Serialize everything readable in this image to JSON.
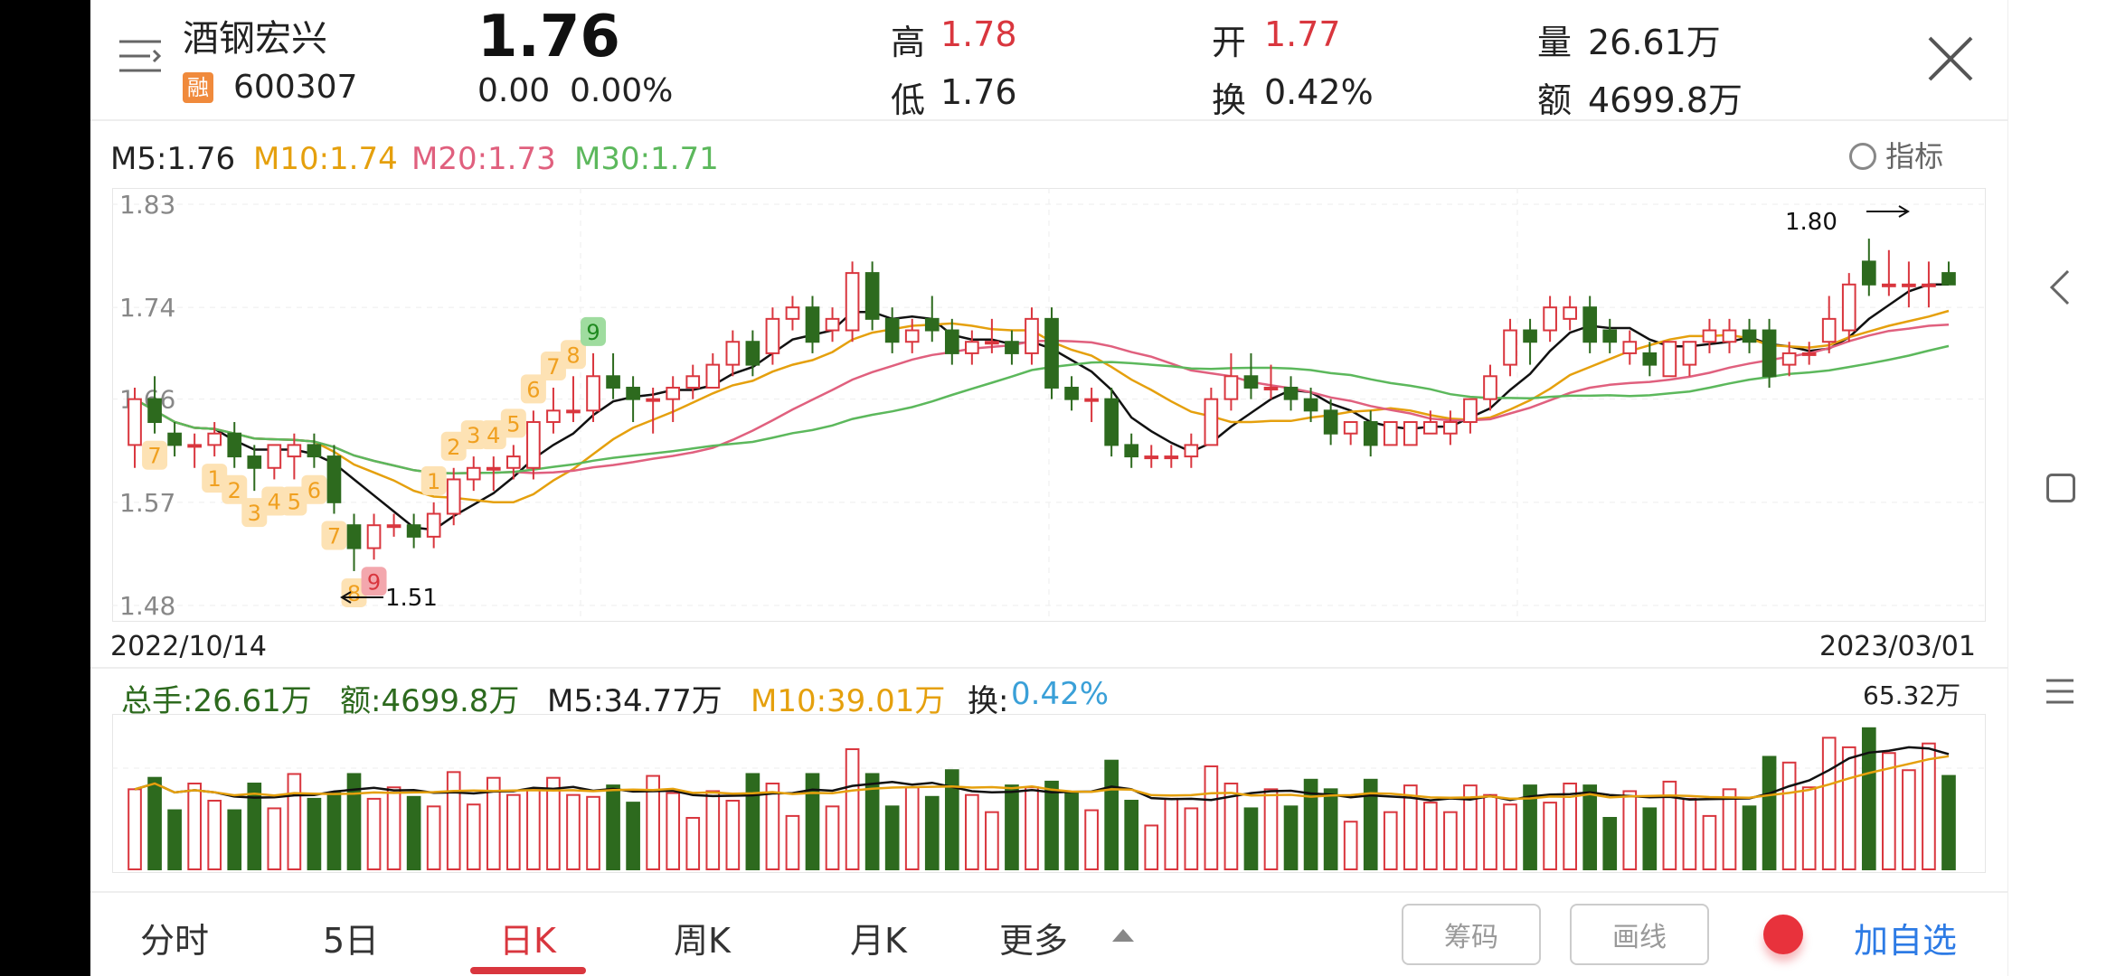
{
  "header": {
    "stock_name": "酒钢宏兴",
    "badge": "融",
    "code": "600307",
    "price": "1.76",
    "change": "0.00",
    "change_pct": "0.00%",
    "high_label": "高",
    "high": "1.78",
    "low_label": "低",
    "low": "1.76",
    "open_label": "开",
    "open": "1.77",
    "turnover_label": "换",
    "turnover": "0.42%",
    "volume_label": "量",
    "volume": "26.61万",
    "amount_label": "额",
    "amount": "4699.8万"
  },
  "ma_legend": {
    "m5": "M5:1.76",
    "m10": "M10:1.74",
    "m20": "M20:1.73",
    "m30": "M30:1.71",
    "indicator_label": "指标"
  },
  "kline": {
    "y_ticks": [
      "1.83",
      "1.74",
      "1.66",
      "1.57",
      "1.48"
    ],
    "start_date": "2022/10/14",
    "end_date": "2023/03/01",
    "high_mark": "1.80",
    "low_mark": "1.51",
    "td_sequence": [
      "1",
      "2",
      "3",
      "4",
      "5",
      "6",
      "7",
      "8",
      "9",
      "7",
      "1",
      "2",
      "3",
      "4",
      "5",
      "6",
      "7",
      "8",
      "9"
    ]
  },
  "volume_legend": {
    "total": "总手:26.61万",
    "amount": "额:4699.8万",
    "m5": "M5:34.77万",
    "m10": "M10:39.01万",
    "turnover_label": "换:",
    "turnover": "0.42%",
    "max": "65.32万"
  },
  "tabs": [
    "分时",
    "5日",
    "日K",
    "周K",
    "月K",
    "更多"
  ],
  "buttons": {
    "chips": "筹码",
    "draw": "画线",
    "add_watch": "加自选"
  },
  "colors": {
    "up": "#d9363e",
    "down": "#2d6a1e",
    "m10": "#e5a00d",
    "m20": "#e0607e",
    "m30": "#5cb85c"
  },
  "chart_data": {
    "type": "candlestick",
    "x_range": [
      "2022/10/14",
      "2023/03/01"
    ],
    "y_range": [
      1.48,
      1.83
    ],
    "ohlc": [
      [
        1.62,
        1.67,
        1.6,
        1.66
      ],
      [
        1.66,
        1.68,
        1.63,
        1.64
      ],
      [
        1.63,
        1.64,
        1.61,
        1.62
      ],
      [
        1.62,
        1.63,
        1.6,
        1.62
      ],
      [
        1.62,
        1.64,
        1.61,
        1.63
      ],
      [
        1.63,
        1.64,
        1.6,
        1.61
      ],
      [
        1.61,
        1.62,
        1.58,
        1.6
      ],
      [
        1.6,
        1.62,
        1.59,
        1.62
      ],
      [
        1.61,
        1.63,
        1.59,
        1.62
      ],
      [
        1.62,
        1.63,
        1.6,
        1.61
      ],
      [
        1.61,
        1.62,
        1.56,
        1.57
      ],
      [
        1.55,
        1.56,
        1.51,
        1.53
      ],
      [
        1.53,
        1.56,
        1.52,
        1.55
      ],
      [
        1.55,
        1.56,
        1.54,
        1.55
      ],
      [
        1.55,
        1.56,
        1.53,
        1.54
      ],
      [
        1.54,
        1.57,
        1.53,
        1.56
      ],
      [
        1.56,
        1.6,
        1.55,
        1.59
      ],
      [
        1.59,
        1.61,
        1.58,
        1.6
      ],
      [
        1.6,
        1.61,
        1.58,
        1.6
      ],
      [
        1.6,
        1.62,
        1.59,
        1.61
      ],
      [
        1.6,
        1.65,
        1.59,
        1.64
      ],
      [
        1.64,
        1.67,
        1.63,
        1.65
      ],
      [
        1.65,
        1.68,
        1.64,
        1.65
      ],
      [
        1.65,
        1.7,
        1.64,
        1.68
      ],
      [
        1.68,
        1.7,
        1.66,
        1.67
      ],
      [
        1.67,
        1.68,
        1.64,
        1.66
      ],
      [
        1.66,
        1.67,
        1.63,
        1.66
      ],
      [
        1.66,
        1.68,
        1.64,
        1.67
      ],
      [
        1.67,
        1.69,
        1.66,
        1.68
      ],
      [
        1.67,
        1.7,
        1.67,
        1.69
      ],
      [
        1.69,
        1.72,
        1.68,
        1.71
      ],
      [
        1.71,
        1.72,
        1.68,
        1.69
      ],
      [
        1.7,
        1.74,
        1.69,
        1.73
      ],
      [
        1.73,
        1.75,
        1.72,
        1.74
      ],
      [
        1.74,
        1.75,
        1.7,
        1.71
      ],
      [
        1.72,
        1.74,
        1.71,
        1.73
      ],
      [
        1.72,
        1.78,
        1.71,
        1.77
      ],
      [
        1.77,
        1.78,
        1.72,
        1.73
      ],
      [
        1.73,
        1.74,
        1.7,
        1.71
      ],
      [
        1.71,
        1.73,
        1.7,
        1.72
      ],
      [
        1.73,
        1.75,
        1.71,
        1.72
      ],
      [
        1.72,
        1.73,
        1.69,
        1.7
      ],
      [
        1.7,
        1.72,
        1.69,
        1.71
      ],
      [
        1.71,
        1.73,
        1.7,
        1.71
      ],
      [
        1.71,
        1.72,
        1.69,
        1.7
      ],
      [
        1.7,
        1.74,
        1.69,
        1.73
      ],
      [
        1.73,
        1.74,
        1.66,
        1.67
      ],
      [
        1.67,
        1.68,
        1.65,
        1.66
      ],
      [
        1.66,
        1.67,
        1.64,
        1.66
      ],
      [
        1.66,
        1.67,
        1.61,
        1.62
      ],
      [
        1.62,
        1.63,
        1.6,
        1.61
      ],
      [
        1.61,
        1.62,
        1.6,
        1.61
      ],
      [
        1.61,
        1.62,
        1.6,
        1.61
      ],
      [
        1.61,
        1.63,
        1.6,
        1.62
      ],
      [
        1.62,
        1.67,
        1.62,
        1.66
      ],
      [
        1.66,
        1.7,
        1.65,
        1.68
      ],
      [
        1.68,
        1.7,
        1.66,
        1.67
      ],
      [
        1.67,
        1.69,
        1.66,
        1.67
      ],
      [
        1.67,
        1.68,
        1.65,
        1.66
      ],
      [
        1.66,
        1.67,
        1.64,
        1.65
      ],
      [
        1.65,
        1.66,
        1.62,
        1.63
      ],
      [
        1.63,
        1.64,
        1.62,
        1.64
      ],
      [
        1.64,
        1.65,
        1.61,
        1.62
      ],
      [
        1.62,
        1.64,
        1.62,
        1.64
      ],
      [
        1.62,
        1.64,
        1.62,
        1.64
      ],
      [
        1.63,
        1.65,
        1.63,
        1.64
      ],
      [
        1.63,
        1.65,
        1.62,
        1.64
      ],
      [
        1.64,
        1.66,
        1.63,
        1.66
      ],
      [
        1.66,
        1.69,
        1.65,
        1.68
      ],
      [
        1.69,
        1.73,
        1.68,
        1.72
      ],
      [
        1.72,
        1.73,
        1.69,
        1.71
      ],
      [
        1.72,
        1.75,
        1.71,
        1.74
      ],
      [
        1.73,
        1.75,
        1.72,
        1.74
      ],
      [
        1.74,
        1.75,
        1.7,
        1.71
      ],
      [
        1.72,
        1.73,
        1.7,
        1.71
      ],
      [
        1.7,
        1.72,
        1.69,
        1.71
      ],
      [
        1.7,
        1.71,
        1.68,
        1.69
      ],
      [
        1.68,
        1.71,
        1.68,
        1.71
      ],
      [
        1.69,
        1.71,
        1.68,
        1.71
      ],
      [
        1.71,
        1.73,
        1.7,
        1.72
      ],
      [
        1.71,
        1.73,
        1.7,
        1.72
      ],
      [
        1.72,
        1.73,
        1.7,
        1.71
      ],
      [
        1.72,
        1.73,
        1.67,
        1.68
      ],
      [
        1.69,
        1.71,
        1.68,
        1.7
      ],
      [
        1.7,
        1.71,
        1.69,
        1.7
      ],
      [
        1.71,
        1.75,
        1.7,
        1.73
      ],
      [
        1.72,
        1.77,
        1.71,
        1.76
      ],
      [
        1.78,
        1.8,
        1.75,
        1.76
      ],
      [
        1.76,
        1.79,
        1.75,
        1.76
      ],
      [
        1.76,
        1.78,
        1.74,
        1.76
      ],
      [
        1.76,
        1.78,
        1.74,
        1.76
      ],
      [
        1.77,
        1.78,
        1.76,
        1.76
      ]
    ],
    "volume_max": "65.32万"
  }
}
